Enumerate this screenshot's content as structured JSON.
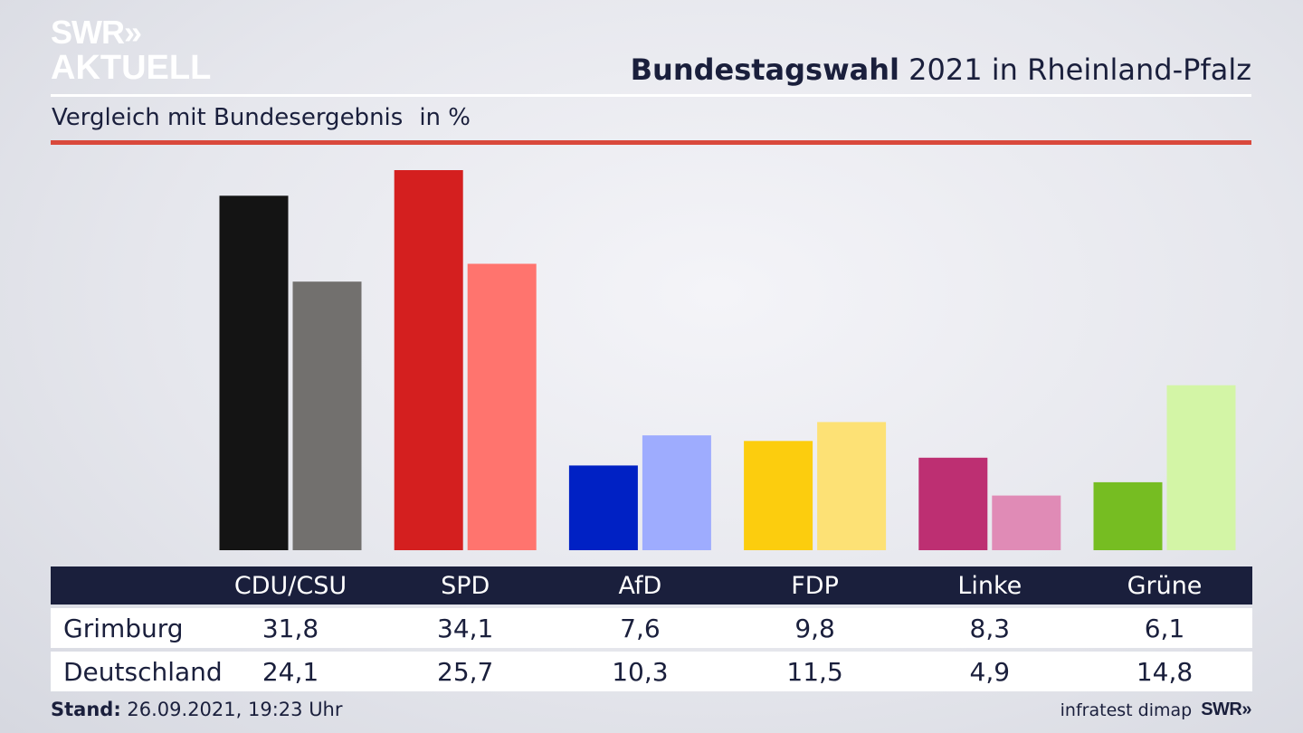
{
  "header": {
    "logo_line1": "SWR»",
    "logo_line2": "AKTUELL",
    "title_bold": "Bundestagswahl",
    "title_rest": "2021 in Rheinland-Pfalz",
    "subtitle": "Vergleich mit Bundesergebnis",
    "unit": "in %"
  },
  "chart_data": {
    "type": "bar",
    "categories": [
      "CDU/CSU",
      "SPD",
      "AfD",
      "FDP",
      "Linke",
      "Grüne"
    ],
    "series": [
      {
        "name": "Grimburg",
        "values": [
          31.8,
          34.1,
          7.6,
          9.8,
          8.3,
          6.1
        ],
        "colors": [
          "#141414",
          "#d41f1f",
          "#0021c4",
          "#fccd0e",
          "#bd2f72",
          "#76bd22"
        ]
      },
      {
        "name": "Deutschland",
        "values": [
          24.1,
          25.7,
          10.3,
          11.5,
          4.9,
          14.8
        ],
        "colors": [
          "#72706e",
          "#ff746e",
          "#9eacfe",
          "#fde175",
          "#e08bb6",
          "#d3f5a6"
        ]
      }
    ],
    "ylim": [
      0,
      34.1
    ]
  },
  "table": {
    "headers": [
      "CDU/CSU",
      "SPD",
      "AfD",
      "FDP",
      "Linke",
      "Grüne"
    ],
    "rows": [
      {
        "label": "Grimburg",
        "values": [
          "31,8",
          "34,1",
          "7,6",
          "9,8",
          "8,3",
          "6,1"
        ]
      },
      {
        "label": "Deutschland",
        "values": [
          "24,1",
          "25,7",
          "10,3",
          "11,5",
          "4,9",
          "14,8"
        ]
      }
    ]
  },
  "footer": {
    "stand_label": "Stand:",
    "stand_value": "26.09.2021, 19:23 Uhr",
    "source": "infratest dimap",
    "brand": "SWR»"
  },
  "colors": {
    "navy": "#1a1f3c",
    "accent_red": "#d9493c"
  }
}
